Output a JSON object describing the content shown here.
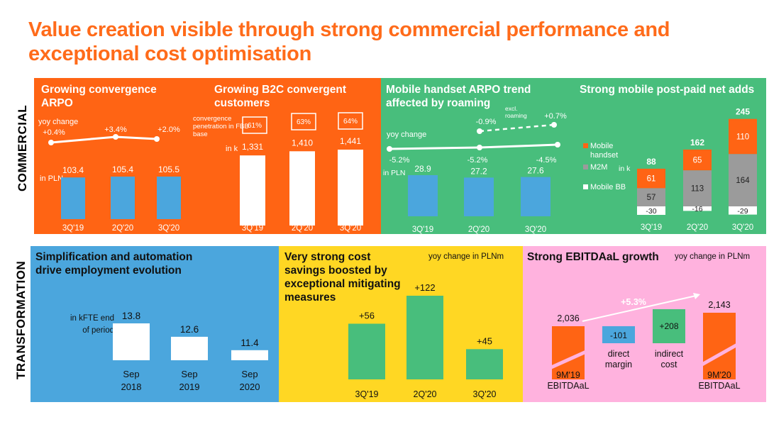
{
  "title": "Value creation visible through strong commercial performance and exceptional cost optimisation",
  "section_labels": {
    "commercial": "COMMERCIAL",
    "transformation": "TRANSFORMATION"
  },
  "colors": {
    "orange": "#FF6414",
    "green": "#48BE7C",
    "blue": "#4BA6DD",
    "yellow": "#FFD723",
    "pink": "#FFB2DE",
    "grey": "#9B9B9B",
    "white": "#FFFFFF"
  },
  "chart_data": [
    {
      "id": "convergence_arpo",
      "type": "bar",
      "title": "Growing convergence ARPO",
      "categories": [
        "3Q'19",
        "2Q'20",
        "3Q'20"
      ],
      "values": [
        103.4,
        105.4,
        105.5
      ],
      "value_labels": [
        "103.4",
        "105.4",
        "105.5"
      ],
      "unit_label": "in PLN",
      "yoy_label": "yoy change",
      "yoy_changes": [
        "+0.4%",
        "+3.4%",
        "+2.0%"
      ]
    },
    {
      "id": "b2c_convergent",
      "type": "bar",
      "title": "Growing B2C convergent customers",
      "categories": [
        "3Q'19",
        "2Q'20",
        "3Q'20"
      ],
      "values": [
        1331,
        1410,
        1441
      ],
      "value_labels": [
        "1,331",
        "1,410",
        "1,441"
      ],
      "unit_label": "in k",
      "penetration_label": "convergence penetration in FBB base",
      "penetration": [
        "61%",
        "63%",
        "64%"
      ]
    },
    {
      "id": "mobile_arpo",
      "type": "bar",
      "title": "Mobile handset ARPO trend affected by roaming",
      "categories": [
        "3Q'19",
        "2Q'20",
        "3Q'20"
      ],
      "values": [
        28.9,
        27.2,
        27.6
      ],
      "value_labels": [
        "28.9",
        "27.2",
        "27.6"
      ],
      "unit_label": "in PLN",
      "yoy_label": "yoy change",
      "yoy_changes": [
        "-5.2%",
        "-5.2%",
        "-4.5%"
      ],
      "excl_roaming_label": "excl. roaming",
      "excl_roaming_changes": [
        "-0.9%",
        "+0.7%"
      ]
    },
    {
      "id": "postpaid_net_adds",
      "type": "bar",
      "stacked": true,
      "title": "Strong mobile post-paid net adds",
      "unit_label": "in k",
      "categories": [
        "3Q'19",
        "2Q'20",
        "3Q'20"
      ],
      "series": [
        {
          "name": "Mobile handset",
          "values": [
            61,
            65,
            110
          ]
        },
        {
          "name": "M2M",
          "values": [
            57,
            113,
            164
          ]
        },
        {
          "name": "Mobile BB",
          "values": [
            -30,
            -16,
            -29
          ]
        }
      ],
      "totals": [
        88,
        162,
        245
      ]
    },
    {
      "id": "employment",
      "type": "bar",
      "title": "Simplification and automation drive employment evolution",
      "unit_label": "in kFTE end of period",
      "categories": [
        "Sep 2018",
        "Sep 2019",
        "Sep 2020"
      ],
      "values": [
        13.8,
        12.6,
        11.4
      ],
      "value_labels": [
        "13.8",
        "12.6",
        "11.4"
      ]
    },
    {
      "id": "cost_savings",
      "type": "bar",
      "title": "Very strong cost savings boosted by exceptional mitigating measures",
      "unit_label": "yoy change in PLNm",
      "categories": [
        "3Q'19",
        "2Q'20",
        "3Q'20"
      ],
      "values": [
        56,
        122,
        45
      ],
      "value_labels": [
        "+56",
        "+122",
        "+45"
      ]
    },
    {
      "id": "ebitdaal_bridge",
      "type": "bar",
      "waterfall": true,
      "title": "Strong EBITDAaL growth",
      "unit_label": "yoy change in PLNm",
      "categories": [
        "9M'19 EBITDAaL",
        "direct margin",
        "indirect cost",
        "9M'20 EBITDAaL"
      ],
      "values": [
        2036,
        -101,
        208,
        2143
      ],
      "value_labels": [
        "2,036",
        "-101",
        "+208",
        "2,143"
      ],
      "growth_label": "+5.3%"
    }
  ]
}
